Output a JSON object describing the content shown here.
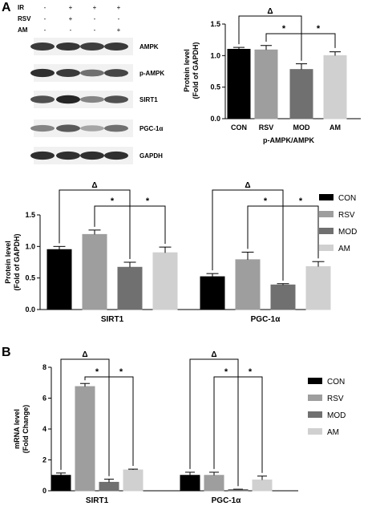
{
  "panel_labels": {
    "a": "A",
    "b": "B"
  },
  "blot": {
    "conditions": [
      {
        "label": "IR",
        "values": [
          "-",
          "+",
          "+",
          "+"
        ]
      },
      {
        "label": "RSV",
        "values": [
          "-",
          "+",
          "-",
          "-"
        ]
      },
      {
        "label": "AM",
        "values": [
          "-",
          "-",
          "-",
          "+"
        ]
      }
    ],
    "bands": [
      {
        "label": "AMPK",
        "intensities": [
          0.8,
          0.82,
          0.78,
          0.8
        ]
      },
      {
        "label": "p-AMPK",
        "intensities": [
          0.85,
          0.8,
          0.55,
          0.75
        ]
      },
      {
        "label": "SIRT1",
        "intensities": [
          0.7,
          0.9,
          0.45,
          0.7
        ]
      },
      {
        "label": "PGC-1α",
        "intensities": [
          0.45,
          0.65,
          0.3,
          0.55
        ]
      },
      {
        "label": "GAPDH",
        "intensities": [
          0.85,
          0.85,
          0.85,
          0.85
        ]
      }
    ]
  },
  "chart_data": [
    {
      "type": "bar",
      "id": "top-right",
      "categories": [
        "CON",
        "RSV",
        "MOD",
        "AM"
      ],
      "values": [
        1.1,
        1.09,
        0.78,
        1.0
      ],
      "errors": [
        0.03,
        0.07,
        0.09,
        0.06
      ],
      "colors": [
        "#000000",
        "#9e9e9e",
        "#707070",
        "#d0d0d0"
      ],
      "xlabel": "p-AMPK/AMPK",
      "ylabel": [
        "Protein level",
        "(Fold of GAPDH)"
      ],
      "ylim": [
        0,
        1.5
      ],
      "yticks": [
        "0.0",
        "0.5",
        "1.0",
        "1.5"
      ],
      "annotations": [
        {
          "symbol": "Δ",
          "from": "CON",
          "to": "MOD"
        },
        {
          "symbol": "*",
          "from": "RSV",
          "to": "MOD"
        },
        {
          "symbol": "*",
          "from": "MOD",
          "to": "AM"
        }
      ]
    },
    {
      "type": "bar",
      "id": "middle",
      "groups": [
        "SIRT1",
        "PGC-1α"
      ],
      "series": [
        {
          "name": "CON",
          "color": "#000000",
          "values": [
            0.95,
            0.52
          ],
          "errors": [
            0.05,
            0.05
          ]
        },
        {
          "name": "RSV",
          "color": "#9e9e9e",
          "values": [
            1.19,
            0.79
          ],
          "errors": [
            0.07,
            0.12
          ]
        },
        {
          "name": "MOD",
          "color": "#707070",
          "values": [
            0.67,
            0.39
          ],
          "errors": [
            0.08,
            0.02
          ]
        },
        {
          "name": "AM",
          "color": "#d0d0d0",
          "values": [
            0.9,
            0.68
          ],
          "errors": [
            0.09,
            0.08
          ]
        }
      ],
      "ylabel": [
        "Protein level",
        "(Fold of GAPDH)"
      ],
      "ylim": [
        0,
        1.5
      ],
      "yticks": [
        "0.0",
        "0.5",
        "1.0",
        "1.5"
      ],
      "annotations": [
        {
          "group": 0,
          "symbol": "Δ",
          "from": 0,
          "to": 2
        },
        {
          "group": 0,
          "symbol": "*",
          "from": 1,
          "to": 2
        },
        {
          "group": 0,
          "symbol": "*",
          "from": 2,
          "to": 3
        },
        {
          "group": 1,
          "symbol": "Δ",
          "from": 0,
          "to": 2
        },
        {
          "group": 1,
          "symbol": "*",
          "from": 1,
          "to": 2
        },
        {
          "group": 1,
          "symbol": "*",
          "from": 2,
          "to": 3
        }
      ]
    },
    {
      "type": "bar",
      "id": "bottom",
      "groups": [
        "SIRT1",
        "PGC-1α"
      ],
      "series": [
        {
          "name": "CON",
          "color": "#000000",
          "values": [
            1.0,
            1.0
          ],
          "errors": [
            0.15,
            0.2
          ]
        },
        {
          "name": "RSV",
          "color": "#9e9e9e",
          "values": [
            6.75,
            1.0
          ],
          "errors": [
            0.2,
            0.2
          ]
        },
        {
          "name": "MOD",
          "color": "#707070",
          "values": [
            0.55,
            0.08
          ],
          "errors": [
            0.2,
            0.02
          ]
        },
        {
          "name": "AM",
          "color": "#d0d0d0",
          "values": [
            1.35,
            0.7
          ],
          "errors": [
            0.05,
            0.25
          ]
        }
      ],
      "ylabel": [
        "mRNA level",
        "(Fold Change)"
      ],
      "ylim": [
        0,
        8
      ],
      "yticks": [
        "0",
        "2",
        "4",
        "6",
        "8"
      ],
      "annotations": [
        {
          "group": 0,
          "symbol": "Δ",
          "from": 0,
          "to": 2
        },
        {
          "group": 0,
          "symbol": "*",
          "from": 1,
          "to": 2
        },
        {
          "group": 0,
          "symbol": "*",
          "from": 2,
          "to": 3
        },
        {
          "group": 1,
          "symbol": "Δ",
          "from": 0,
          "to": 2
        },
        {
          "group": 1,
          "symbol": "*",
          "from": 1,
          "to": 2
        },
        {
          "group": 1,
          "symbol": "*",
          "from": 2,
          "to": 3
        }
      ]
    }
  ]
}
